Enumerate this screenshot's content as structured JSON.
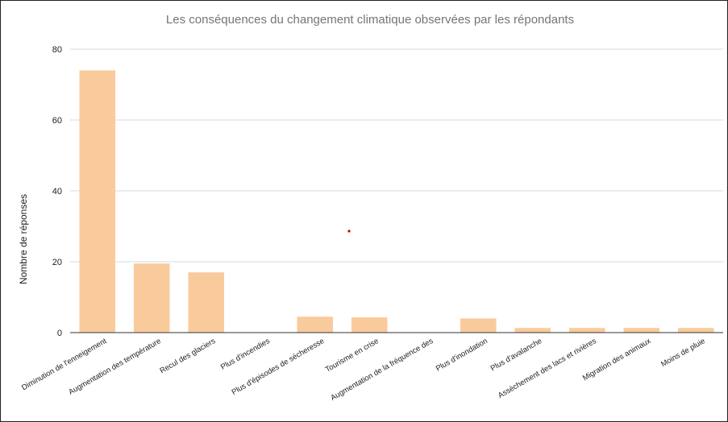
{
  "chart_data": {
    "type": "bar",
    "title": "Les conséquences du changement climatique observées par les répondants",
    "xlabel": "",
    "ylabel": "Nombre de réponses",
    "ylim": [
      0,
      80
    ],
    "yticks": [
      0,
      20,
      40,
      60,
      80
    ],
    "grid": true,
    "legend": "none",
    "bar_color": "#f9cb9c",
    "categories": [
      "Diminution de l'enneigement",
      "Augmentation des température",
      "Recul des glaciers",
      "Plus d'incendies",
      "Plus d'épisodes de sécheresse",
      "Tourisme en crise",
      "Augmentation de la fréquence des",
      "Plus d'inondation",
      "Plus d'avalanche",
      "Assèchement des lacs et rivières",
      "Migration des animaux",
      "Moins de pluie"
    ],
    "values": [
      74,
      19.5,
      17,
      0,
      4.5,
      4.3,
      0,
      4,
      1.3,
      1.3,
      1.3,
      1.3
    ]
  }
}
